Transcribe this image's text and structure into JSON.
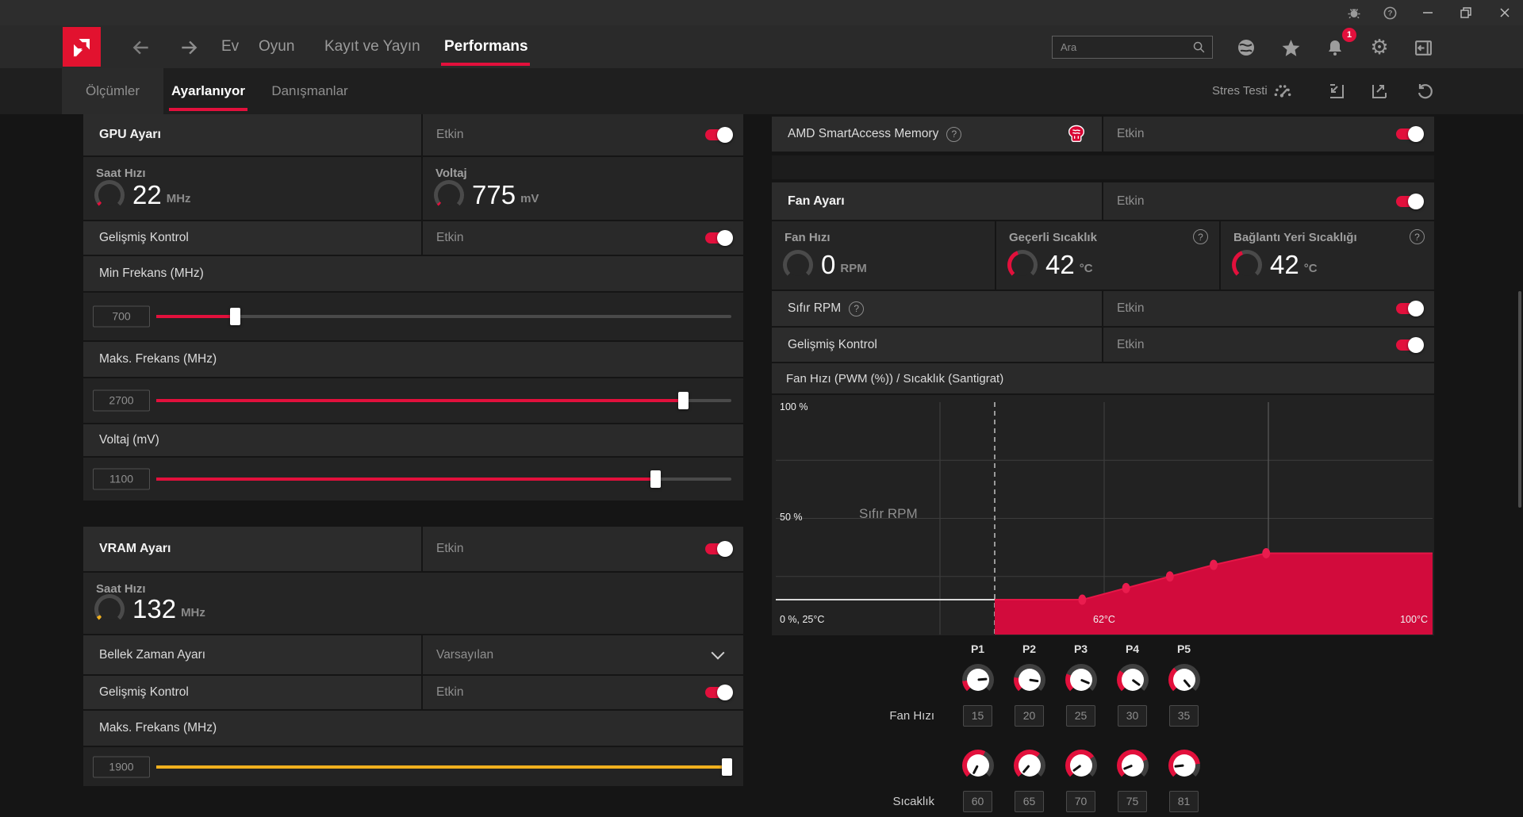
{
  "window": {
    "icons": [
      "bug-report",
      "help",
      "minimize",
      "restore",
      "close"
    ]
  },
  "nav": {
    "tabs": [
      {
        "label": "Ev",
        "active": false
      },
      {
        "label": "Oyun",
        "active": false
      },
      {
        "label": "Kayıt ve Yayın",
        "active": false
      },
      {
        "label": "Performans",
        "active": true
      }
    ],
    "search": {
      "placeholder": "Ara"
    },
    "notification_count": "1"
  },
  "subnav": {
    "tabs": [
      {
        "label": "Ölçümler",
        "active": false
      },
      {
        "label": "Ayarlanıyor",
        "active": true
      },
      {
        "label": "Danışmanlar",
        "active": false
      }
    ],
    "stress_test_label": "Stres Testi"
  },
  "gpu": {
    "title": "GPU Ayarı",
    "status": "Etkin",
    "clock": {
      "label": "Saat Hızı",
      "value": "22",
      "unit": "MHz",
      "gauge_percent": 4,
      "gauge_color": "#e2103c"
    },
    "voltage": {
      "label": "Voltaj",
      "value": "775",
      "unit": "mV",
      "gauge_percent": 3,
      "gauge_color": "#e2103c"
    },
    "advanced": {
      "label": "Gelişmiş Kontrol",
      "status": "Etkin"
    },
    "min_freq": {
      "label": "Min Frekans (MHz)",
      "value": "700",
      "percent": 13.7,
      "color": "#e2103c"
    },
    "max_freq": {
      "label": "Maks. Frekans (MHz)",
      "value": "2700",
      "percent": 91.6,
      "color": "#e2103c"
    },
    "voltage_slider": {
      "label": "Voltaj (mV)",
      "value": "1100",
      "percent": 86.8,
      "color": "#e2103c"
    }
  },
  "vram": {
    "title": "VRAM Ayarı",
    "status": "Etkin",
    "clock": {
      "label": "Saat Hızı",
      "value": "132",
      "unit": "MHz",
      "gauge_percent": 5,
      "gauge_color": "#f0b01e"
    },
    "timing": {
      "label": "Bellek Zaman Ayarı",
      "value": "Varsayılan"
    },
    "advanced": {
      "label": "Gelişmiş Kontrol",
      "status": "Etkin"
    },
    "max_freq": {
      "label": "Maks. Frekans (MHz)",
      "value": "1900",
      "percent": 99.2,
      "color": "#f0b01e"
    }
  },
  "sam": {
    "title": "AMD SmartAccess Memory",
    "status": "Etkin"
  },
  "fan": {
    "title": "Fan Ayarı",
    "status": "Etkin",
    "stats": [
      {
        "label": "Fan Hızı",
        "value": "0",
        "unit": "RPM",
        "gauge_percent": 0,
        "gauge_color": "#e2103c"
      },
      {
        "label": "Geçerli Sıcaklık",
        "value": "42",
        "unit": "°C",
        "gauge_percent": 42,
        "gauge_color": "#e2103c"
      },
      {
        "label": "Bağlantı Yeri Sıcaklığı",
        "value": "42",
        "unit": "°C",
        "gauge_percent": 42,
        "gauge_color": "#e2103c"
      }
    ],
    "zero_rpm": {
      "label": "Sıfır RPM",
      "status": "Etkin"
    },
    "advanced": {
      "label": "Gelişmiş Kontrol",
      "status": "Etkin"
    },
    "chart_title": "Fan Hızı (PWM (%)) / Sıcaklık (Santigrat)"
  },
  "chart_data": {
    "type": "area",
    "title": "Fan Hızı (PWM (%)) / Sıcaklık (Santigrat)",
    "xlabel": "Sıcaklık (Santigrat)",
    "ylabel": "Fan Hızı (PWM %)",
    "xlim": [
      25,
      100
    ],
    "ylim": [
      0,
      100
    ],
    "x": [
      60,
      65,
      70,
      75,
      81
    ],
    "series": [
      {
        "name": "Fan Hızı (PWM %)",
        "values": [
          15,
          20,
          25,
          30,
          35
        ]
      }
    ],
    "zero_rpm_threshold_c": 50,
    "min_pwm_percent": 15,
    "grid": true,
    "y_tick_labels": [
      "100 %",
      "50 %"
    ],
    "corner_label": "0 %, 25°C",
    "x_tick_labels": [
      "62°C",
      "100°C"
    ],
    "zero_rpm_label": "Sıfır RPM"
  },
  "curve_editor": {
    "points": [
      "P1",
      "P2",
      "P3",
      "P4",
      "P5"
    ],
    "fan_row_label": "Fan Hızı",
    "fan_values": [
      "15",
      "20",
      "25",
      "30",
      "35"
    ],
    "temp_row_label": "Sıcaklık",
    "temp_values": [
      "60",
      "65",
      "70",
      "75",
      "81"
    ]
  },
  "colors": {
    "accent": "#e2103c",
    "chart_fill": "#d20b3c",
    "chart_line": "#e61747",
    "chart_dot": "#ea1c4e",
    "vram_yellow": "#f0b01e"
  }
}
